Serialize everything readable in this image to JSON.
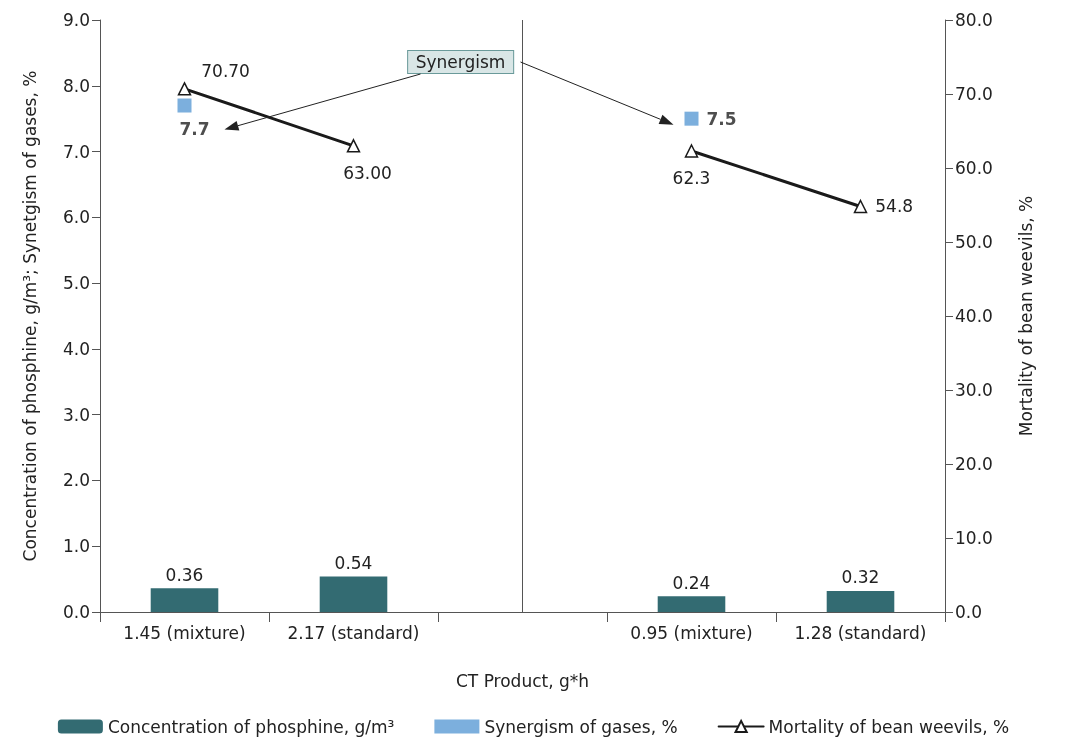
{
  "chart_data": {
    "type": "bar",
    "xlabel": "CT Product, g*h",
    "ylabel": "Concentration of phosphine, g/m³; Synetgism of gases, %",
    "y2label": "Mortality of bean weevils, %",
    "categories": [
      "1.45 (mixture)",
      "2.17 (standard)",
      null,
      "0.95 (mixture)",
      "1.28 (standard)"
    ],
    "series": [
      {
        "name": "Concentration of phosphine, g/m³",
        "color": "#336b72",
        "values": [
          0.36,
          0.54,
          null,
          0.24,
          0.32
        ],
        "data_labels": true
      },
      {
        "name": "Synergism of gases, %",
        "type": "scatter",
        "color": "#5b9bd5",
        "marker": "square",
        "values": [
          7.7,
          null,
          null,
          7.5,
          null
        ],
        "value_labels": [
          "7.7",
          null,
          null,
          "7.5",
          null
        ]
      },
      {
        "name": "Mortality of bean weevils, %",
        "type": "line",
        "axis": "y2",
        "color": "#1a1a1a",
        "marker": "triangle",
        "values": [
          70.7,
          63.0,
          null,
          62.3,
          54.8
        ],
        "value_labels": [
          "70.70",
          "63.00",
          null,
          "62.3",
          "54.8"
        ]
      }
    ],
    "ylim": [
      0,
      9
    ],
    "yticks": [
      {
        "value": 0,
        "label": "0.0"
      },
      {
        "value": 1,
        "label": "1.0"
      },
      {
        "value": 2,
        "label": "2.0"
      },
      {
        "value": 3,
        "label": "3.0"
      },
      {
        "value": 4,
        "label": "4.0"
      },
      {
        "value": 5,
        "label": "5.0"
      },
      {
        "value": 6,
        "label": "6.0"
      },
      {
        "value": 7,
        "label": "7.0"
      },
      {
        "value": 8,
        "label": "8.0"
      },
      {
        "value": 9,
        "label": "9.0"
      }
    ],
    "y2lim": [
      0,
      80
    ],
    "y2ticks": [
      {
        "value": 0,
        "label": "0.0"
      },
      {
        "value": 10,
        "label": "10.0"
      },
      {
        "value": 20,
        "label": "20.0"
      },
      {
        "value": 30,
        "label": "30.0"
      },
      {
        "value": 40,
        "label": "40.0"
      },
      {
        "value": 50,
        "label": "50.0"
      },
      {
        "value": 60,
        "label": "60.0"
      },
      {
        "value": 70,
        "label": "70.0"
      },
      {
        "value": 80,
        "label": "80.0"
      }
    ],
    "ref_lines": [
      {
        "axis": "x",
        "value": null
      }
    ],
    "annotations": [
      "Synergism"
    ],
    "legend": "bottom"
  }
}
